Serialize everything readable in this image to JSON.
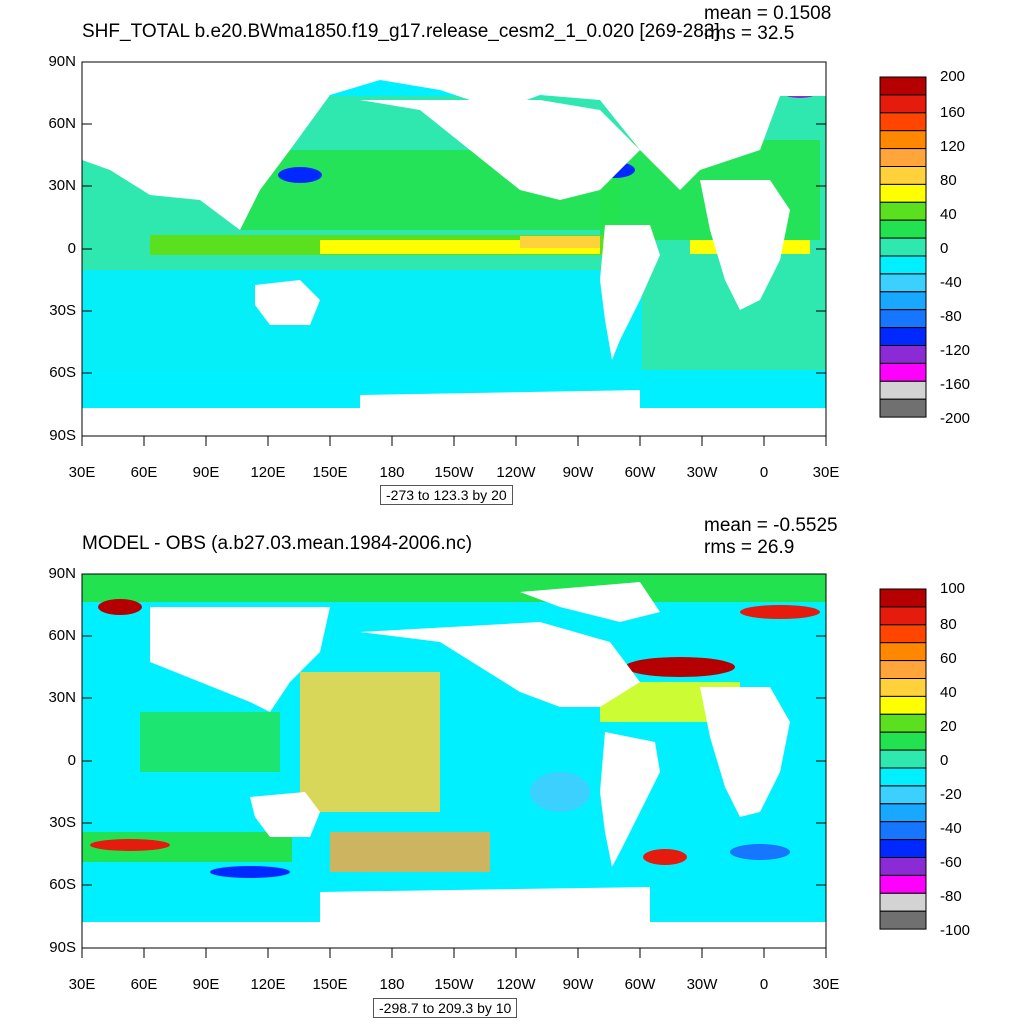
{
  "top": {
    "title": "SHF_TOTAL b.e20.BWma1850.f19_g17.release_cesm2_1_0.020 [269-283]",
    "mean": "mean = 0.1508",
    "rms": "rms = 32.5",
    "range": "-273 to 123.3 by 20",
    "colorbar_labels": [
      "200",
      "160",
      "120",
      "80",
      "40",
      "0",
      "-40",
      "-80",
      "-120",
      "-160",
      "-200"
    ],
    "colors": [
      "#b40000",
      "#e41b0d",
      "#ff4500",
      "#ff8800",
      "#ffa53a",
      "#ffd23c",
      "#ffff00",
      "#5ae01e",
      "#23e24f",
      "#2ee8b0",
      "#00f0ff",
      "#3cd0ff",
      "#18a8ff",
      "#1676ff",
      "#0028ff",
      "#8a2bd6",
      "#ff00ff",
      "#d3d3d3",
      "#707070"
    ]
  },
  "bottom": {
    "title": "MODEL - OBS (a.b27.03.mean.1984-2006.nc)",
    "mean": "mean = -0.5525",
    "rms": "rms = 26.9",
    "range": "-298.7 to 209.3 by 10",
    "colorbar_labels": [
      "100",
      "80",
      "60",
      "40",
      "20",
      "0",
      "-20",
      "-40",
      "-60",
      "-80",
      "-100"
    ],
    "colors": [
      "#b40000",
      "#e41b0d",
      "#ff4500",
      "#ff8800",
      "#ffa53a",
      "#ffd23c",
      "#ffff00",
      "#5ae01e",
      "#23e24f",
      "#2ee8b0",
      "#00f0ff",
      "#3cd0ff",
      "#18a8ff",
      "#1676ff",
      "#0028ff",
      "#8a2bd6",
      "#ff00ff",
      "#d3d3d3",
      "#707070"
    ]
  },
  "axes": {
    "lat_labels": [
      "90N",
      "60N",
      "30N",
      "0",
      "30S",
      "60S",
      "90S"
    ],
    "lon_labels": [
      "30E",
      "60E",
      "90E",
      "120E",
      "150E",
      "180",
      "150W",
      "120W",
      "90W",
      "60W",
      "30W",
      "0",
      "30E"
    ]
  }
}
